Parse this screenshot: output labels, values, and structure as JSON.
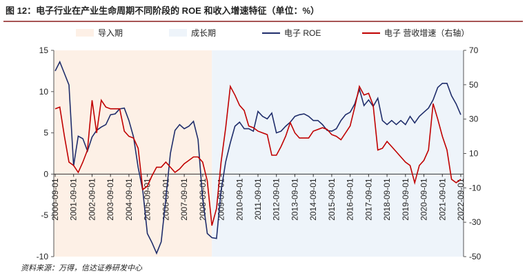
{
  "chart_data": {
    "type": "line",
    "title": "图 12：电子行业在产业生命周期不同阶段的 ROE 和收入增速特征（单位：%）",
    "source": "资料来源：万得，信达证券研发中心",
    "phases": [
      {
        "name": "导入期",
        "color": "#fdf0e6",
        "from": 0,
        "to": 34
      },
      {
        "name": "成长期",
        "color": "#eef4fa",
        "from": 34,
        "to": 88
      }
    ],
    "categories": [
      "2000-09-01",
      null,
      null,
      null,
      "2001-09-01",
      null,
      null,
      null,
      "2002-09-01",
      null,
      null,
      null,
      "2003-09-01",
      null,
      null,
      null,
      "2004-09-01",
      null,
      null,
      null,
      "2005-09-01",
      null,
      null,
      null,
      "2006-09-01",
      null,
      null,
      null,
      "2007-09-01",
      null,
      null,
      null,
      "2008-09-01",
      null,
      null,
      null,
      "2009-09-01",
      null,
      null,
      null,
      "2010-09-01",
      null,
      null,
      null,
      "2011-09-01",
      null,
      null,
      null,
      "2012-09-01",
      null,
      null,
      null,
      "2013-09-01",
      null,
      null,
      null,
      "2014-09-01",
      null,
      null,
      null,
      "2015-09-01",
      null,
      null,
      null,
      "2016-09-01",
      null,
      null,
      null,
      "2017-09-01",
      null,
      null,
      null,
      "2018-09-01",
      null,
      null,
      null,
      "2019-09-01",
      null,
      null,
      null,
      "2020-09-01",
      null,
      null,
      null,
      "2021-09-01",
      null,
      null,
      null,
      "2022-09-01"
    ],
    "series": [
      {
        "name": "电子 ROE",
        "color": "#1f2d6b",
        "values": [
          12.5,
          13.6,
          12.2,
          10.8,
          1.0,
          4.6,
          4.3,
          2.8,
          4.5,
          5.3,
          5.7,
          6.0,
          7.2,
          7.3,
          7.9,
          8.0,
          6.5,
          4.5,
          0.8,
          -2.0,
          -7.2,
          -8.3,
          -9.6,
          -8.2,
          -3.0,
          2.5,
          5.3,
          6.0,
          5.5,
          5.8,
          6.4,
          4.2,
          -3.0,
          -7.2,
          -7.7,
          -7.8,
          -2.0,
          1.5,
          3.8,
          5.8,
          6.3,
          5.5,
          5.5,
          5.2,
          7.6,
          7.0,
          6.7,
          7.4,
          5.0,
          5.2,
          5.8,
          6.3,
          7.0,
          7.2,
          7.3,
          7.0,
          6.5,
          6.5,
          6.0,
          5.3,
          5.2,
          5.5,
          6.5,
          7.2,
          7.5,
          8.5,
          10.3,
          8.3,
          9.0,
          8.2,
          9.2,
          6.5,
          6.0,
          6.5,
          6.0,
          6.5,
          6.0,
          7.0,
          6.2,
          7.0,
          7.5,
          8.0,
          9.0,
          10.5,
          11.0,
          11.0,
          9.5,
          8.5,
          7.2
        ]
      },
      {
        "name": "电子 营收增速（右轴）",
        "color": "#c00000",
        "axis": "y2",
        "values": [
          36,
          37,
          20,
          5,
          3,
          -1,
          5,
          12,
          41,
          22,
          41,
          37,
          36,
          36,
          36,
          23,
          20,
          19,
          13,
          -11,
          -9,
          -3,
          2,
          2,
          5,
          2,
          -1,
          1,
          4,
          6,
          8,
          8,
          5,
          -6,
          -32,
          -22,
          5,
          25,
          49,
          44,
          38,
          35,
          26,
          25,
          23,
          22,
          21,
          9,
          9,
          14,
          20,
          28,
          22,
          19,
          19,
          19,
          23,
          24,
          25,
          24,
          21,
          20,
          18,
          22,
          26,
          37,
          49,
          44,
          45,
          38,
          12,
          13,
          17,
          14,
          11,
          8,
          5,
          3,
          -7,
          3,
          6,
          12,
          39,
          30,
          20,
          12,
          -5,
          -7,
          -5
        ]
      }
    ],
    "ylim": [
      -10,
      15
    ],
    "yticks": [
      -10,
      -5,
      0,
      5,
      10,
      15
    ],
    "y2lim": [
      -50,
      70
    ],
    "y2ticks": [
      -50,
      -30,
      -10,
      10,
      30,
      50,
      70
    ]
  }
}
